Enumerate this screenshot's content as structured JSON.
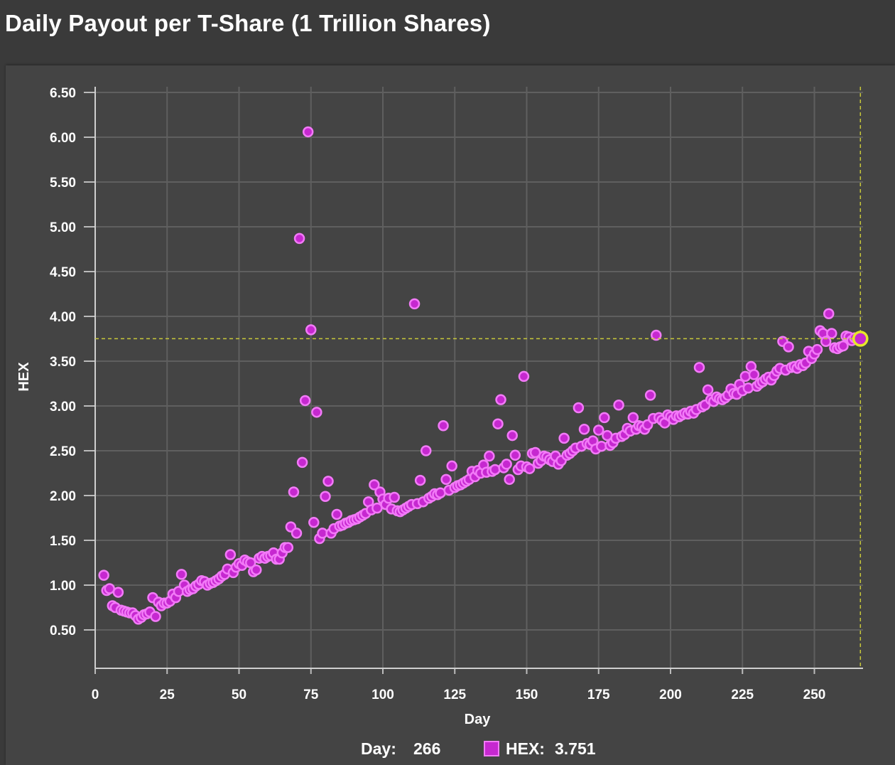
{
  "title": "Daily Payout per T-Share (1 Trillion Shares)",
  "colors": {
    "background": "#3a3a3a",
    "panel": "#444444",
    "grid": "#5f5f5f",
    "marker_fill": "#c628d0",
    "marker_stroke": "#f27af7",
    "highlight": "#e6e82a",
    "crosshair": "#c8c83a"
  },
  "legend": {
    "day_label": "Day:",
    "day_value": "266",
    "series_label": "HEX:",
    "series_value": "3.751"
  },
  "chart_data": {
    "type": "scatter",
    "title": "Daily Payout per T-Share (1 Trillion Shares)",
    "xlabel": "Day",
    "ylabel": "HEX",
    "xlim": [
      0,
      266
    ],
    "ylim": [
      0,
      6.5
    ],
    "xticks": [
      "0",
      "25",
      "50",
      "75",
      "100",
      "125",
      "150",
      "175",
      "200",
      "225",
      "250"
    ],
    "yticks": [
      "0.50",
      "1.00",
      "1.50",
      "2.00",
      "2.50",
      "3.00",
      "3.50",
      "4.00",
      "4.50",
      "5.00",
      "5.50",
      "6.00",
      "6.50"
    ],
    "grid": true,
    "highlight": {
      "x": 266,
      "y": 3.751
    },
    "series": [
      {
        "name": "HEX",
        "points": [
          [
            3,
            1.11
          ],
          [
            4,
            0.94
          ],
          [
            5,
            0.96
          ],
          [
            6,
            0.77
          ],
          [
            7,
            0.75
          ],
          [
            8,
            0.92
          ],
          [
            9,
            0.72
          ],
          [
            10,
            0.71
          ],
          [
            11,
            0.7
          ],
          [
            12,
            0.69
          ],
          [
            13,
            0.69
          ],
          [
            14,
            0.66
          ],
          [
            15,
            0.62
          ],
          [
            16,
            0.64
          ],
          [
            17,
            0.67
          ],
          [
            18,
            0.68
          ],
          [
            19,
            0.7
          ],
          [
            20,
            0.86
          ],
          [
            21,
            0.65
          ],
          [
            22,
            0.81
          ],
          [
            23,
            0.77
          ],
          [
            24,
            0.8
          ],
          [
            25,
            0.8
          ],
          [
            26,
            0.82
          ],
          [
            27,
            0.9
          ],
          [
            28,
            0.86
          ],
          [
            29,
            0.93
          ],
          [
            30,
            1.12
          ],
          [
            31,
            1.0
          ],
          [
            32,
            0.93
          ],
          [
            33,
            0.95
          ],
          [
            34,
            0.96
          ],
          [
            35,
            0.99
          ],
          [
            36,
            1.01
          ],
          [
            37,
            1.05
          ],
          [
            38,
            1.04
          ],
          [
            39,
            1.0
          ],
          [
            40,
            1.02
          ],
          [
            41,
            1.03
          ],
          [
            42,
            1.05
          ],
          [
            43,
            1.07
          ],
          [
            44,
            1.1
          ],
          [
            45,
            1.12
          ],
          [
            46,
            1.18
          ],
          [
            47,
            1.34
          ],
          [
            48,
            1.14
          ],
          [
            49,
            1.2
          ],
          [
            50,
            1.24
          ],
          [
            51,
            1.22
          ],
          [
            52,
            1.28
          ],
          [
            53,
            1.26
          ],
          [
            54,
            1.25
          ],
          [
            55,
            1.15
          ],
          [
            56,
            1.17
          ],
          [
            57,
            1.3
          ],
          [
            58,
            1.32
          ],
          [
            59,
            1.3
          ],
          [
            60,
            1.32
          ],
          [
            61,
            1.33
          ],
          [
            62,
            1.36
          ],
          [
            63,
            1.29
          ],
          [
            64,
            1.29
          ],
          [
            65,
            1.36
          ],
          [
            66,
            1.42
          ],
          [
            67,
            1.42
          ],
          [
            68,
            1.65
          ],
          [
            69,
            2.04
          ],
          [
            70,
            1.58
          ],
          [
            71,
            4.87
          ],
          [
            72,
            2.37
          ],
          [
            73,
            3.06
          ],
          [
            74,
            6.06
          ],
          [
            75,
            3.85
          ],
          [
            76,
            1.7
          ],
          [
            77,
            2.93
          ],
          [
            78,
            1.52
          ],
          [
            79,
            1.58
          ],
          [
            80,
            1.99
          ],
          [
            81,
            2.16
          ],
          [
            82,
            1.58
          ],
          [
            83,
            1.63
          ],
          [
            84,
            1.79
          ],
          [
            85,
            1.66
          ],
          [
            86,
            1.67
          ],
          [
            87,
            1.69
          ],
          [
            88,
            1.7
          ],
          [
            89,
            1.72
          ],
          [
            90,
            1.73
          ],
          [
            91,
            1.74
          ],
          [
            92,
            1.76
          ],
          [
            93,
            1.78
          ],
          [
            94,
            1.8
          ],
          [
            95,
            1.93
          ],
          [
            96,
            1.84
          ],
          [
            97,
            2.12
          ],
          [
            98,
            1.86
          ],
          [
            99,
            2.04
          ],
          [
            100,
            1.96
          ],
          [
            101,
            1.9
          ],
          [
            102,
            1.97
          ],
          [
            103,
            1.85
          ],
          [
            104,
            1.98
          ],
          [
            105,
            1.83
          ],
          [
            106,
            1.82
          ],
          [
            107,
            1.84
          ],
          [
            108,
            1.86
          ],
          [
            109,
            1.88
          ],
          [
            110,
            1.9
          ],
          [
            111,
            4.14
          ],
          [
            112,
            1.91
          ],
          [
            113,
            2.17
          ],
          [
            114,
            1.93
          ],
          [
            115,
            2.5
          ],
          [
            116,
            1.97
          ],
          [
            117,
            1.99
          ],
          [
            118,
            2.02
          ],
          [
            119,
            2.01
          ],
          [
            120,
            2.03
          ],
          [
            121,
            2.78
          ],
          [
            122,
            2.18
          ],
          [
            123,
            2.06
          ],
          [
            124,
            2.33
          ],
          [
            125,
            2.09
          ],
          [
            126,
            2.11
          ],
          [
            127,
            2.12
          ],
          [
            128,
            2.14
          ],
          [
            129,
            2.16
          ],
          [
            130,
            2.18
          ],
          [
            131,
            2.27
          ],
          [
            132,
            2.21
          ],
          [
            133,
            2.28
          ],
          [
            134,
            2.25
          ],
          [
            135,
            2.34
          ],
          [
            136,
            2.26
          ],
          [
            137,
            2.44
          ],
          [
            138,
            2.27
          ],
          [
            139,
            2.29
          ],
          [
            140,
            2.8
          ],
          [
            141,
            3.07
          ],
          [
            142,
            2.31
          ],
          [
            143,
            2.35
          ],
          [
            144,
            2.18
          ],
          [
            145,
            2.67
          ],
          [
            146,
            2.45
          ],
          [
            147,
            2.29
          ],
          [
            148,
            2.33
          ],
          [
            149,
            3.33
          ],
          [
            150,
            2.32
          ],
          [
            151,
            2.3
          ],
          [
            152,
            2.47
          ],
          [
            153,
            2.48
          ],
          [
            154,
            2.36
          ],
          [
            155,
            2.39
          ],
          [
            156,
            2.44
          ],
          [
            157,
            2.43
          ],
          [
            158,
            2.4
          ],
          [
            159,
            2.38
          ],
          [
            160,
            2.44
          ],
          [
            161,
            2.35
          ],
          [
            162,
            2.39
          ],
          [
            163,
            2.64
          ],
          [
            164,
            2.45
          ],
          [
            165,
            2.47
          ],
          [
            166,
            2.5
          ],
          [
            167,
            2.53
          ],
          [
            168,
            2.98
          ],
          [
            169,
            2.55
          ],
          [
            170,
            2.74
          ],
          [
            171,
            2.58
          ],
          [
            172,
            2.57
          ],
          [
            173,
            2.61
          ],
          [
            174,
            2.52
          ],
          [
            175,
            2.73
          ],
          [
            176,
            2.55
          ],
          [
            177,
            2.87
          ],
          [
            178,
            2.67
          ],
          [
            179,
            2.56
          ],
          [
            180,
            2.59
          ],
          [
            181,
            2.64
          ],
          [
            182,
            3.01
          ],
          [
            183,
            2.66
          ],
          [
            184,
            2.68
          ],
          [
            185,
            2.75
          ],
          [
            186,
            2.72
          ],
          [
            187,
            2.87
          ],
          [
            188,
            2.74
          ],
          [
            189,
            2.78
          ],
          [
            190,
            2.77
          ],
          [
            191,
            2.74
          ],
          [
            192,
            2.79
          ],
          [
            193,
            3.12
          ],
          [
            194,
            2.86
          ],
          [
            195,
            3.79
          ],
          [
            196,
            2.87
          ],
          [
            197,
            2.84
          ],
          [
            198,
            2.81
          ],
          [
            199,
            2.9
          ],
          [
            200,
            2.88
          ],
          [
            201,
            2.85
          ],
          [
            202,
            2.89
          ],
          [
            203,
            2.88
          ],
          [
            204,
            2.9
          ],
          [
            205,
            2.92
          ],
          [
            206,
            2.91
          ],
          [
            207,
            2.94
          ],
          [
            208,
            2.92
          ],
          [
            209,
            2.96
          ],
          [
            210,
            3.43
          ],
          [
            211,
            2.99
          ],
          [
            212,
            3.01
          ],
          [
            213,
            3.18
          ],
          [
            214,
            3.07
          ],
          [
            215,
            3.05
          ],
          [
            216,
            3.1
          ],
          [
            217,
            3.08
          ],
          [
            218,
            3.07
          ],
          [
            219,
            3.09
          ],
          [
            220,
            3.12
          ],
          [
            221,
            3.19
          ],
          [
            222,
            3.14
          ],
          [
            223,
            3.13
          ],
          [
            224,
            3.24
          ],
          [
            225,
            3.17
          ],
          [
            226,
            3.33
          ],
          [
            227,
            3.2
          ],
          [
            228,
            3.44
          ],
          [
            229,
            3.35
          ],
          [
            230,
            3.22
          ],
          [
            231,
            3.25
          ],
          [
            232,
            3.27
          ],
          [
            233,
            3.3
          ],
          [
            234,
            3.32
          ],
          [
            235,
            3.29
          ],
          [
            236,
            3.34
          ],
          [
            237,
            3.39
          ],
          [
            238,
            3.42
          ],
          [
            239,
            3.72
          ],
          [
            240,
            3.4
          ],
          [
            241,
            3.66
          ],
          [
            242,
            3.43
          ],
          [
            243,
            3.44
          ],
          [
            244,
            3.42
          ],
          [
            245,
            3.46
          ],
          [
            246,
            3.45
          ],
          [
            247,
            3.48
          ],
          [
            248,
            3.61
          ],
          [
            249,
            3.53
          ],
          [
            250,
            3.58
          ],
          [
            251,
            3.63
          ],
          [
            252,
            3.84
          ],
          [
            253,
            3.81
          ],
          [
            254,
            3.72
          ],
          [
            255,
            4.03
          ],
          [
            256,
            3.81
          ],
          [
            257,
            3.65
          ],
          [
            258,
            3.64
          ],
          [
            259,
            3.66
          ],
          [
            260,
            3.67
          ],
          [
            261,
            3.78
          ],
          [
            262,
            3.77
          ],
          [
            263,
            3.73
          ],
          [
            264,
            3.76
          ],
          [
            265,
            3.74
          ]
        ]
      }
    ]
  }
}
